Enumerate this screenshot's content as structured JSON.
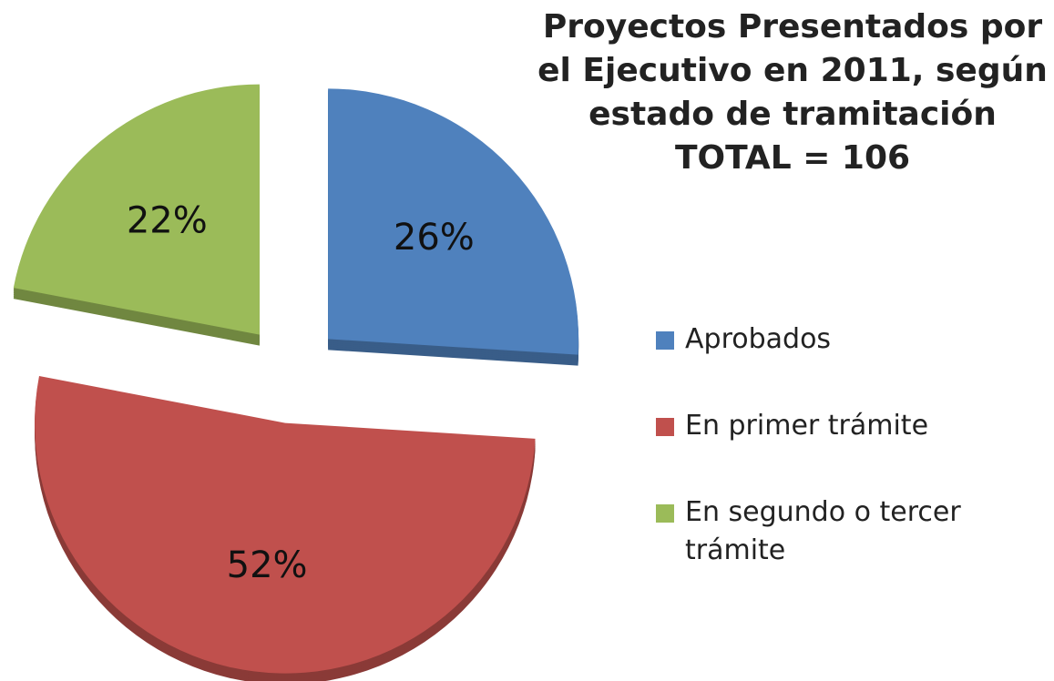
{
  "chart_data": {
    "type": "pie",
    "title": "Proyectos Presentados por el Ejecutivo en 2011, según estado de tramitación",
    "subtitle": "TOTAL = 106",
    "categories": [
      "Aprobados",
      "En primer trámite",
      "En segundo o tercer trámite"
    ],
    "values": [
      26,
      52,
      22
    ],
    "value_labels": [
      "26%",
      "52%",
      "22%"
    ],
    "colors": [
      "#4f81bd",
      "#c0504d",
      "#9bbb59"
    ],
    "legend": "right"
  }
}
